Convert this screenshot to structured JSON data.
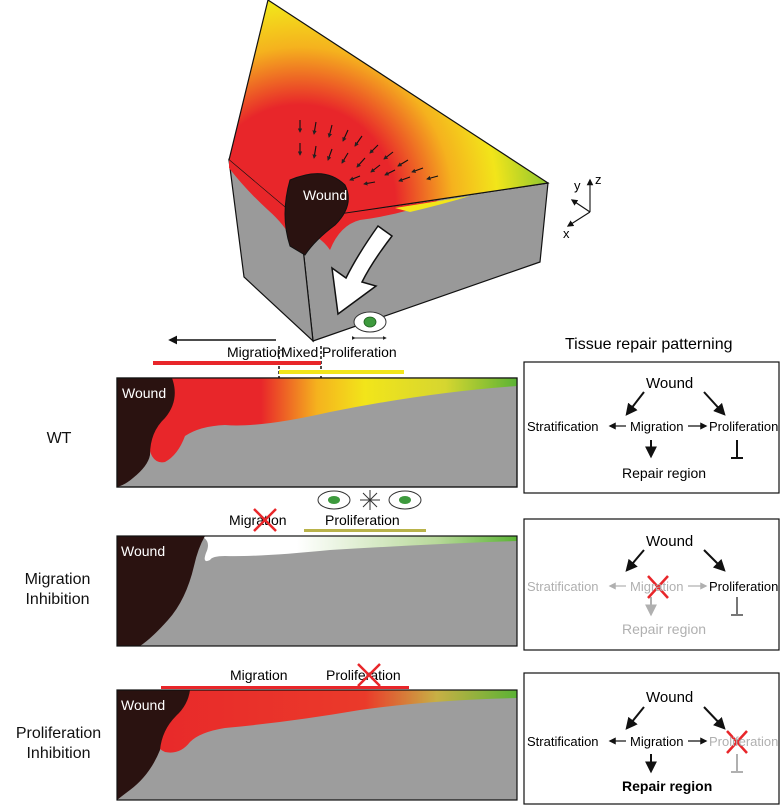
{
  "top_block": {
    "wound_label": "Wound",
    "axes": {
      "x": "x",
      "y": "y",
      "z": "z"
    }
  },
  "header": {
    "migration": "Migration",
    "mixed": "Mixed",
    "proliferation": "Proliferation",
    "panel_title": "Tissue repair patterning"
  },
  "rows": [
    {
      "label_line1": "WT",
      "label_line2": "",
      "wound": "Wound",
      "diagram": {
        "wound": "Wound",
        "stratification": "Stratification",
        "migration": "Migration",
        "proliferation": "Proliferation",
        "repair": "Repair region"
      }
    },
    {
      "label_line1": "Migration",
      "label_line2": "Inhibition",
      "wound": "Wound",
      "migration_label": "Migration",
      "proliferation_label": "Proliferation",
      "diagram": {
        "wound": "Wound",
        "stratification": "Stratification",
        "migration": "Migration",
        "proliferation": "Proliferation",
        "repair": "Repair region"
      }
    },
    {
      "label_line1": "Proliferation",
      "label_line2": "Inhibition",
      "wound": "Wound",
      "migration_label": "Migration",
      "proliferation_label": "Proliferation",
      "diagram": {
        "wound": "Wound",
        "stratification": "Stratification",
        "migration": "Migration",
        "proliferation": "Proliferation",
        "repair": "Repair region"
      }
    }
  ],
  "colors": {
    "wound": "#2a1210",
    "red": "#e8262a",
    "yellow": "#f2e51a",
    "green": "#5bb335",
    "gray": "#9d9d9d",
    "olive": "#b9b34a",
    "faded": "#b0b0b0"
  }
}
